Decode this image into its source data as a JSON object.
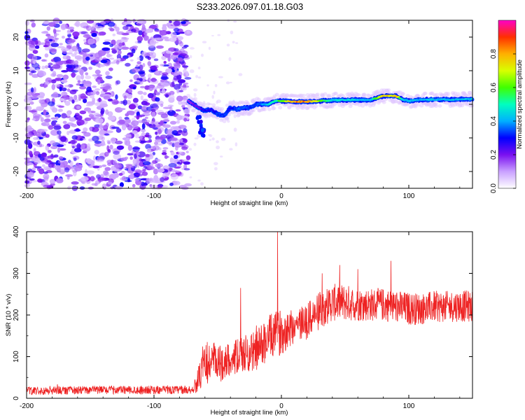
{
  "title": "S233.2026.097.01.18.G03",
  "chart_data": [
    {
      "type": "heatmap",
      "xlabel": "Height of straight line (km)",
      "ylabel": "Frequency (Hz)",
      "xlim": [
        -200,
        150
      ],
      "ylim": [
        -25,
        25
      ],
      "xticks": [
        "-200",
        "-100",
        "0",
        "100"
      ],
      "xtick_values": [
        -200,
        -100,
        0,
        100
      ],
      "yticks": [
        "20",
        "10",
        "0",
        "-10",
        "-20"
      ],
      "ytick_values": [
        20,
        10,
        0,
        -10,
        -20
      ],
      "colorbar": {
        "label": "Normalized spectral amplitude",
        "range": [
          0,
          1
        ],
        "ticks": [
          "0.0",
          "0.2",
          "0.4",
          "0.6",
          "0.8"
        ],
        "tick_values": [
          0.0,
          0.2,
          0.4,
          0.6,
          0.8
        ],
        "colors": [
          "#ffffff",
          "#c9a0ff",
          "#7a10f0",
          "#0000ff",
          "#00b0ff",
          "#00ffc0",
          "#40ff00",
          "#d8ff00",
          "#ffb000",
          "#ff3000",
          "#ff00c8"
        ]
      },
      "noise_region_x": [
        -200,
        -73
      ],
      "signal_track": {
        "x": [
          -73,
          -65,
          -60,
          -55,
          -50,
          -45,
          -40,
          -35,
          -30,
          -25,
          -20,
          -15,
          -10,
          -5,
          0,
          10,
          20,
          30,
          40,
          50,
          60,
          70,
          80,
          85,
          90,
          95,
          100,
          110,
          120,
          130,
          140,
          150
        ],
        "frequency": [
          1,
          -1,
          -2,
          -1.5,
          -3,
          -3.5,
          -1,
          -1.5,
          -1,
          -1,
          0,
          0,
          0,
          1,
          1,
          0.8,
          0.8,
          1,
          1.2,
          1.3,
          1.3,
          1.3,
          2.5,
          2.5,
          2.5,
          1.5,
          1,
          1.4,
          1.4,
          1.4,
          1.5,
          1.5
        ],
        "amplitude": [
          0.2,
          0.25,
          0.3,
          0.3,
          0.35,
          0.35,
          0.3,
          0.35,
          0.4,
          0.35,
          0.35,
          0.4,
          0.5,
          0.55,
          0.65,
          0.9,
          0.9,
          0.7,
          0.5,
          0.5,
          0.45,
          0.45,
          0.85,
          0.8,
          0.85,
          0.5,
          0.45,
          0.45,
          0.45,
          0.45,
          0.45,
          0.45
        ]
      },
      "branch": {
        "x": [
          -65,
          -64,
          -63,
          -62,
          -61
        ],
        "frequency": [
          -4,
          -6,
          -8,
          -9,
          -8
        ]
      }
    },
    {
      "type": "line",
      "xlabel": "Height of straight line (km)",
      "ylabel": "SNR (10 * v/v)",
      "xlim": [
        -200,
        150
      ],
      "ylim": [
        0,
        400
      ],
      "xticks": [
        "-200",
        "-100",
        "0",
        "100"
      ],
      "xtick_values": [
        -200,
        -100,
        0,
        100
      ],
      "yticks": [
        "400",
        "300",
        "200",
        "100",
        "0"
      ],
      "ytick_values": [
        400,
        300,
        200,
        100,
        0
      ],
      "series": [
        {
          "name": "SNR",
          "color": "#ee2222",
          "trend_x": [
            -200,
            -150,
            -100,
            -70,
            -65,
            -60,
            -55,
            -50,
            -40,
            -30,
            -20,
            -10,
            0,
            10,
            20,
            30,
            40,
            50,
            60,
            70,
            80,
            90,
            100,
            110,
            120,
            130,
            140,
            150
          ],
          "trend_y": [
            18,
            20,
            20,
            20,
            45,
            80,
            90,
            80,
            95,
            105,
            115,
            145,
            160,
            175,
            185,
            210,
            230,
            230,
            225,
            225,
            225,
            220,
            215,
            215,
            220,
            220,
            222,
            220
          ],
          "noise_amplitude": [
            10,
            10,
            10,
            10,
            30,
            50,
            55,
            45,
            40,
            45,
            50,
            55,
            55,
            45,
            45,
            45,
            45,
            45,
            40,
            40,
            40,
            40,
            40,
            38,
            38,
            38,
            38,
            38
          ],
          "spikes": [
            {
              "x": -3,
              "y": 400
            },
            {
              "x": -32,
              "y": 265
            },
            {
              "x": 86,
              "y": 330
            },
            {
              "x": 32,
              "y": 300
            },
            {
              "x": 60,
              "y": 310
            }
          ]
        }
      ]
    }
  ]
}
